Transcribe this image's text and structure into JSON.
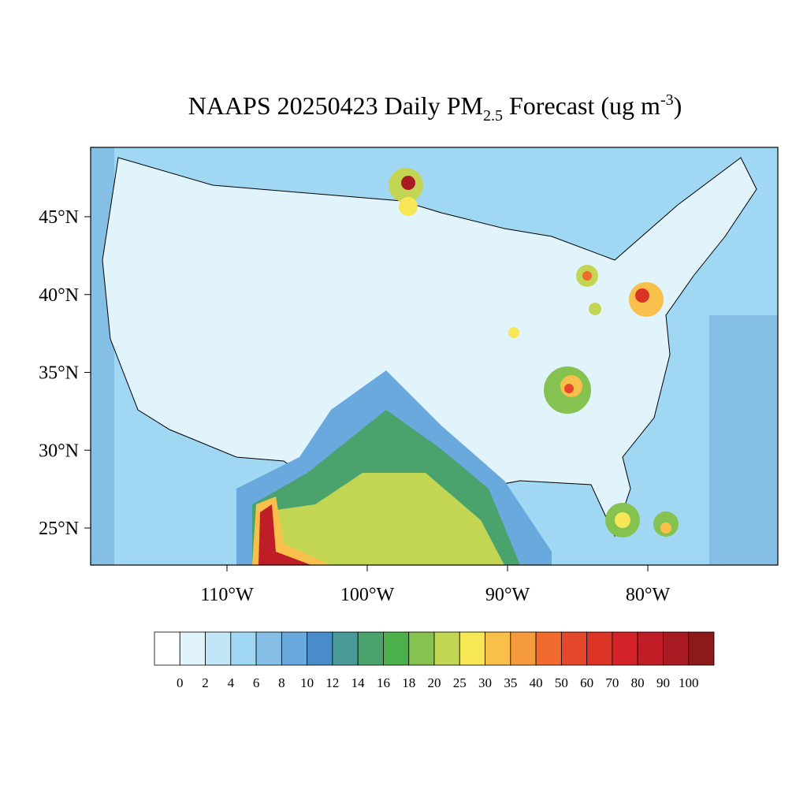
{
  "title_parts": [
    "NAAPS 20250423 Daily PM",
    "2.5",
    " Forecast (ug m",
    "-3",
    ")"
  ],
  "lat_ticks": [
    {
      "value": 25,
      "label": "25°N"
    },
    {
      "value": 30,
      "label": "30°N"
    },
    {
      "value": 35,
      "label": "35°N"
    },
    {
      "value": 40,
      "label": "40°N"
    },
    {
      "value": 45,
      "label": "45°N"
    }
  ],
  "lon_ticks": [
    {
      "value": -110,
      "label": "110°W"
    },
    {
      "value": -100,
      "label": "100°W"
    },
    {
      "value": -90,
      "label": "90°W"
    },
    {
      "value": -80,
      "label": "80°W"
    }
  ],
  "colorbar": {
    "levels": [
      0,
      2,
      4,
      6,
      8,
      10,
      12,
      14,
      16,
      18,
      20,
      25,
      30,
      35,
      40,
      50,
      60,
      70,
      80,
      90,
      100
    ],
    "colors": [
      "#ffffff",
      "#e1f3fb",
      "#c0e6f7",
      "#a0d8f3",
      "#85bfe6",
      "#6aa9dd",
      "#4a8bc9",
      "#4a9a9a",
      "#4aa36c",
      "#4cb04a",
      "#86c24f",
      "#c3d654",
      "#f7e756",
      "#f8c04a",
      "#f59a3d",
      "#f06b2d",
      "#e5472a",
      "#dc3327",
      "#d42229",
      "#bf1e26",
      "#a91b22",
      "#8c1a1b"
    ]
  }
}
